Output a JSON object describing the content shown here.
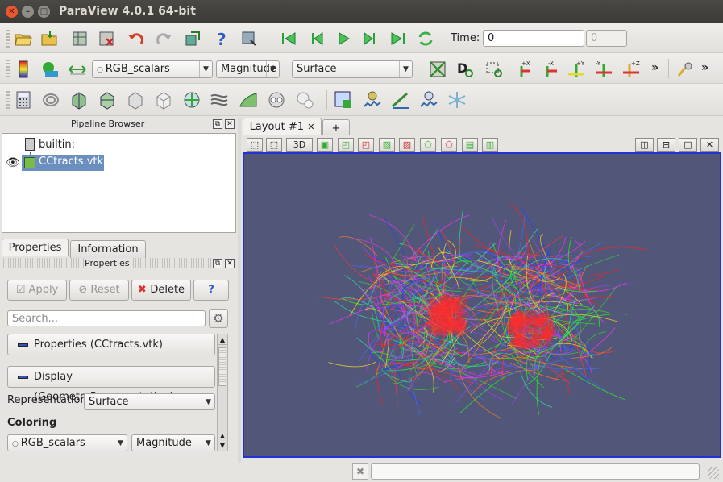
{
  "window": {
    "title": "ParaView 4.0.1 64-bit"
  },
  "time": {
    "label": "Time:",
    "value": "0",
    "step_placeholder": "0"
  },
  "toolbar2": {
    "color_array": "RGB_scalars",
    "component": "Magnitude",
    "representation": "Surface",
    "overflow": "»"
  },
  "pipeline_browser": {
    "title": "Pipeline Browser",
    "root": "builtin:",
    "items": [
      {
        "label": "CCtracts.vtk",
        "selected": true,
        "visible": true
      }
    ]
  },
  "tabs": {
    "properties": "Properties",
    "information": "Information"
  },
  "properties": {
    "title": "Properties",
    "apply": "Apply",
    "reset": "Reset",
    "delete": "Delete",
    "help": "?",
    "search_placeholder": "Search...",
    "sections": [
      "Properties (CCtracts.vtk)",
      "Display (GeometryRepresentation)"
    ],
    "representation_label": "Representation",
    "representation_value": "Surface",
    "coloring_label": "Coloring",
    "coloring_array": "RGB_scalars",
    "coloring_component": "Magnitude"
  },
  "layout": {
    "tab": "Layout #1",
    "close": "✕",
    "add": "+",
    "mode": "3D"
  },
  "colors": {
    "viewport_bg": "#525678",
    "active_border": "#2232d8",
    "close_button": "#e9572f"
  }
}
